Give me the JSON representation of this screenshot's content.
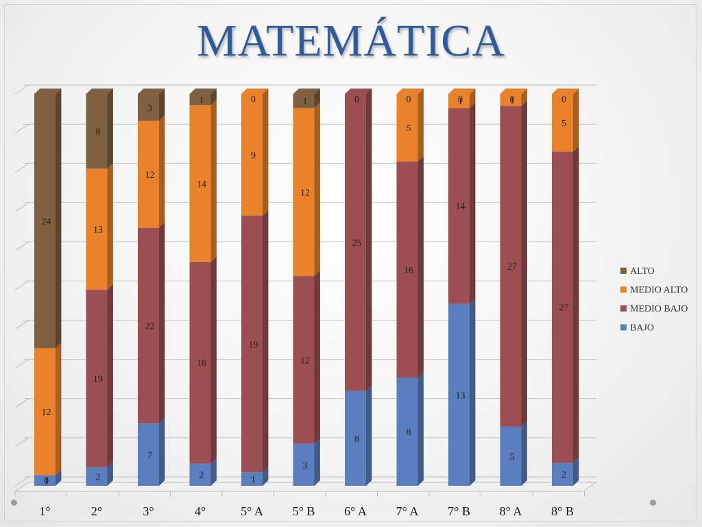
{
  "slide": {
    "title": "MATEMÁTICA"
  },
  "chart_data": {
    "type": "bar",
    "stacked": true,
    "three_d": true,
    "categories": [
      "1°",
      "2°",
      "3°",
      "4°",
      "5° A",
      "5° B",
      "6° A",
      "7° A",
      "7° B",
      "8° A",
      "8° B"
    ],
    "series": [
      {
        "name": "BAJO",
        "color": "#5b7ebf",
        "values": [
          1,
          2,
          7,
          2,
          1,
          3,
          8,
          8,
          13,
          5,
          2
        ]
      },
      {
        "name": "MEDIO BAJO",
        "color": "#9b4f52",
        "values": [
          0,
          19,
          22,
          18,
          19,
          12,
          25,
          16,
          14,
          27,
          27
        ]
      },
      {
        "name": "MEDIO ALTO",
        "color": "#e9822a",
        "values": [
          12,
          13,
          12,
          14,
          9,
          12,
          0,
          5,
          1,
          1,
          5
        ]
      },
      {
        "name": "ALTO",
        "color": "#7f6040",
        "values": [
          24,
          8,
          3,
          1,
          0,
          1,
          0,
          0,
          0,
          0,
          0
        ]
      }
    ],
    "stack_scale": "100%",
    "gridlines": true,
    "legend_position": "right",
    "legend_order": [
      "ALTO",
      "MEDIO ALTO",
      "MEDIO BAJO",
      "BAJO"
    ]
  }
}
